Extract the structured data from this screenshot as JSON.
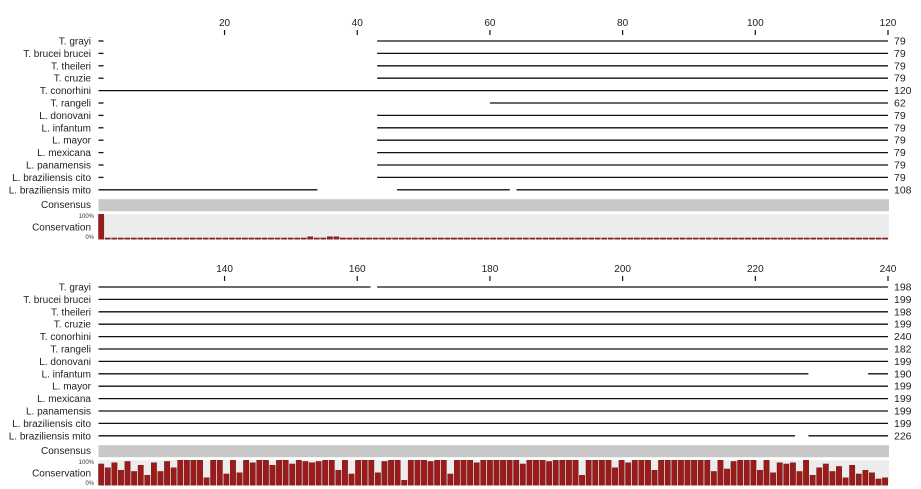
{
  "colors": {
    "bar": "#9b1b1b",
    "bar_stroke": "#6a0f0f",
    "consensus": "#c8c8c8",
    "conservation_bg": "#ececec",
    "line": "#111111"
  },
  "labels": {
    "consensus": "Consensus",
    "conservation": "Conservation",
    "pct_top": "100%",
    "pct_bottom": "0%"
  },
  "blocks": [
    {
      "start": 1,
      "end": 120,
      "ticks": [
        "20",
        "40",
        "60",
        "80",
        "100",
        "120"
      ],
      "sequences": [
        {
          "name": "T. grayi",
          "count": "79",
          "segments": [
            [
              1,
              1
            ],
            [
              43,
              120
            ]
          ]
        },
        {
          "name": "T. brucei brucei",
          "count": "79",
          "segments": [
            [
              1,
              1
            ],
            [
              43,
              120
            ]
          ]
        },
        {
          "name": "T. theileri",
          "count": "79",
          "segments": [
            [
              1,
              1
            ],
            [
              43,
              120
            ]
          ]
        },
        {
          "name": "T. cruzie",
          "count": "79",
          "segments": [
            [
              1,
              1
            ],
            [
              43,
              120
            ]
          ]
        },
        {
          "name": "T. conorhini",
          "count": "120",
          "segments": [
            [
              1,
              120
            ]
          ]
        },
        {
          "name": "T. rangeli",
          "count": "62",
          "segments": [
            [
              1,
              1
            ],
            [
              60,
              120
            ]
          ]
        },
        {
          "name": "L. donovani",
          "count": "79",
          "segments": [
            [
              1,
              1
            ],
            [
              43,
              120
            ]
          ]
        },
        {
          "name": "L. infantum",
          "count": "79",
          "segments": [
            [
              1,
              1
            ],
            [
              43,
              120
            ]
          ]
        },
        {
          "name": "L. mayor",
          "count": "79",
          "segments": [
            [
              1,
              1
            ],
            [
              43,
              120
            ]
          ]
        },
        {
          "name": "L. mexicana",
          "count": "79",
          "segments": [
            [
              1,
              1
            ],
            [
              43,
              120
            ]
          ]
        },
        {
          "name": "L. panamensis",
          "count": "79",
          "segments": [
            [
              1,
              1
            ],
            [
              43,
              120
            ]
          ]
        },
        {
          "name": "L. braziliensis cito",
          "count": "79",
          "segments": [
            [
              1,
              1
            ],
            [
              43,
              120
            ]
          ]
        },
        {
          "name": "L. braziliensis mito",
          "count": "108",
          "segments": [
            [
              1,
              34
            ],
            [
              46,
              63
            ],
            [
              64,
              120
            ]
          ]
        }
      ],
      "conservation": [
        100,
        5,
        5,
        5,
        5,
        5,
        5,
        5,
        5,
        5,
        5,
        5,
        5,
        5,
        5,
        5,
        5,
        5,
        5,
        5,
        5,
        5,
        5,
        5,
        5,
        5,
        5,
        5,
        5,
        5,
        5,
        5,
        10,
        5,
        5,
        10,
        10,
        5,
        5,
        5,
        5,
        5,
        5,
        5,
        5,
        5,
        5,
        5,
        5,
        5,
        5,
        5,
        5,
        5,
        5,
        5,
        5,
        5,
        5,
        5,
        5,
        5,
        5,
        5,
        5,
        5,
        5,
        5,
        5,
        5,
        5,
        5,
        5,
        5,
        5,
        5,
        5,
        5,
        5,
        5,
        5,
        5,
        5,
        5,
        5,
        5,
        5,
        5,
        5,
        5,
        5,
        5,
        5,
        5,
        5,
        5,
        5,
        5,
        5,
        5,
        5,
        5,
        5,
        5,
        5,
        5,
        5,
        5,
        5,
        5,
        5,
        5,
        5,
        5,
        5,
        5,
        5,
        5,
        5,
        5,
        5
      ]
    },
    {
      "start": 121,
      "end": 240,
      "ticks": [
        "140",
        "160",
        "180",
        "200",
        "220",
        "240"
      ],
      "sequences": [
        {
          "name": "T. grayi",
          "count": "198",
          "segments": [
            [
              121,
              162
            ],
            [
              163,
              240
            ]
          ]
        },
        {
          "name": "T. brucei brucei",
          "count": "199",
          "segments": [
            [
              121,
              240
            ]
          ]
        },
        {
          "name": "T. theileri",
          "count": "198",
          "segments": [
            [
              121,
              240
            ]
          ]
        },
        {
          "name": "T. cruzie",
          "count": "199",
          "segments": [
            [
              121,
              240
            ]
          ]
        },
        {
          "name": "T. conorhini",
          "count": "240",
          "segments": [
            [
              121,
              240
            ]
          ]
        },
        {
          "name": "T. rangeli",
          "count": "182",
          "segments": [
            [
              121,
              240
            ]
          ]
        },
        {
          "name": "L. donovani",
          "count": "199",
          "segments": [
            [
              121,
              240
            ]
          ]
        },
        {
          "name": "L. infantum",
          "count": "190",
          "segments": [
            [
              121,
              228
            ],
            [
              237,
              240
            ]
          ]
        },
        {
          "name": "L. mayor",
          "count": "199",
          "segments": [
            [
              121,
              240
            ]
          ]
        },
        {
          "name": "L. mexicana",
          "count": "199",
          "segments": [
            [
              121,
              240
            ]
          ]
        },
        {
          "name": "L. panamensis",
          "count": "199",
          "segments": [
            [
              121,
              240
            ]
          ]
        },
        {
          "name": "L. braziliensis cito",
          "count": "199",
          "segments": [
            [
              121,
              240
            ]
          ]
        },
        {
          "name": "L. braziliensis mito",
          "count": "226",
          "segments": [
            [
              121,
              226
            ],
            [
              228,
              240
            ]
          ]
        }
      ],
      "conservation": [
        85,
        70,
        90,
        60,
        95,
        55,
        80,
        40,
        90,
        55,
        95,
        70,
        100,
        100,
        100,
        100,
        30,
        100,
        100,
        45,
        100,
        50,
        100,
        90,
        100,
        100,
        80,
        100,
        100,
        85,
        100,
        95,
        90,
        95,
        100,
        100,
        60,
        100,
        45,
        100,
        100,
        100,
        50,
        95,
        100,
        100,
        20,
        100,
        100,
        100,
        95,
        100,
        100,
        45,
        100,
        100,
        100,
        90,
        100,
        100,
        100,
        100,
        100,
        100,
        85,
        100,
        100,
        100,
        95,
        100,
        100,
        100,
        100,
        40,
        100,
        100,
        100,
        100,
        70,
        100,
        90,
        100,
        100,
        100,
        60,
        100,
        100,
        100,
        100,
        100,
        100,
        100,
        100,
        55,
        100,
        65,
        95,
        100,
        100,
        100,
        60,
        100,
        50,
        90,
        85,
        90,
        55,
        100,
        40,
        70,
        85,
        55,
        75,
        30,
        80,
        45,
        60,
        50,
        25,
        30
      ]
    }
  ]
}
